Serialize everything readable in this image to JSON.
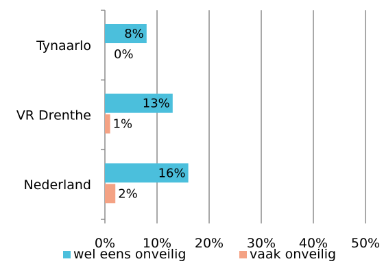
{
  "chart_data": {
    "type": "bar",
    "orientation": "horizontal",
    "categories": [
      "Tynaarlo",
      "VR Drenthe",
      "Nederland"
    ],
    "series": [
      {
        "name": "wel eens onveilig",
        "color": "#4bbfdc",
        "values": [
          8,
          13,
          16
        ],
        "labels": [
          "8%",
          "13%",
          "16%"
        ]
      },
      {
        "name": "vaak onveilig",
        "color": "#f4a284",
        "values": [
          0,
          1,
          2
        ],
        "labels": [
          "0%",
          "1%",
          "2%"
        ]
      }
    ],
    "xlim": [
      0,
      50
    ],
    "xticks": [
      0,
      10,
      20,
      30,
      40,
      50
    ],
    "xtick_labels": [
      "0%",
      "10%",
      "20%",
      "30%",
      "40%",
      "50%"
    ],
    "grid": true,
    "legend_position": "bottom"
  }
}
